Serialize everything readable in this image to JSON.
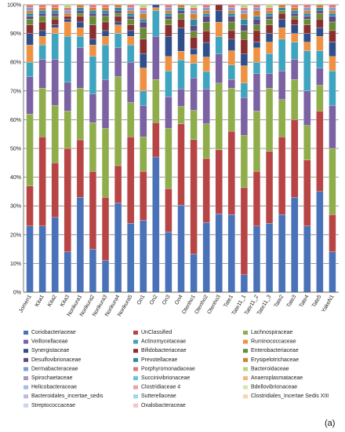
{
  "panel_label": "(a)",
  "chart_data": {
    "type": "bar",
    "stacked": true,
    "percent": true,
    "ylim": [
      0,
      100
    ],
    "yticks": [
      "0%",
      "10%",
      "20%",
      "30%",
      "40%",
      "50%",
      "60%",
      "70%",
      "80%",
      "90%",
      "100%"
    ],
    "grid": true,
    "legend_position": "bottom",
    "categories": [
      "Jomen1",
      "Kita1",
      "Kita2",
      "Kita3",
      "Norikura1",
      "Norikura2",
      "Norikura3",
      "Norikura4",
      "Norikura5",
      "On1",
      "On2",
      "On3",
      "On4",
      "Otenho1",
      "Otenho2",
      "Otenho3",
      "Tate1",
      "Tate11_1",
      "Tate11_2",
      "Tate11_3",
      "Tate2",
      "Tate3",
      "Tate4",
      "Tate5",
      "YakeN1"
    ],
    "series": [
      {
        "name": "Coriobacteriaceae",
        "color": "#4a72b8",
        "values": [
          23,
          23,
          26,
          14,
          33,
          15,
          11,
          31,
          24,
          25,
          47,
          21,
          30,
          13,
          24,
          27,
          27,
          6,
          23,
          24,
          27,
          33,
          23,
          35,
          14
        ]
      },
      {
        "name": "UnClassified",
        "color": "#b84545",
        "values": [
          14,
          31,
          19,
          36,
          20,
          27,
          22,
          13,
          30,
          17,
          12,
          15,
          28,
          39,
          22,
          22,
          29,
          30,
          19,
          25,
          27,
          27,
          23,
          28,
          13
        ]
      },
      {
        "name": "Lachnospiraceae",
        "color": "#8fad4a",
        "values": [
          25,
          17,
          20,
          13,
          18,
          17,
          24,
          31,
          12,
          12,
          15,
          21,
          6,
          10,
          12,
          23,
          15,
          18,
          21,
          22,
          13,
          14,
          12,
          9,
          23
        ]
      },
      {
        "name": "Veillonellaceae",
        "color": "#7b62a3",
        "values": [
          13,
          10,
          16,
          10,
          14,
          10,
          17,
          10,
          14,
          11,
          15,
          11,
          6,
          11,
          12,
          10,
          3,
          13,
          13,
          5,
          10,
          7,
          12,
          6,
          15
        ]
      },
      {
        "name": "Actinomycetaceae",
        "color": "#3fa4bf",
        "values": [
          5,
          5,
          9,
          16,
          4,
          13,
          12,
          5,
          6,
          5,
          9,
          9,
          10,
          5,
          6,
          6,
          5,
          5,
          4,
          7,
          11,
          6,
          14,
          6,
          12
        ]
      },
      {
        "name": "Ruminococcaceae",
        "color": "#ef9143",
        "values": [
          6,
          3,
          2,
          5,
          3,
          4,
          3,
          3,
          3,
          8,
          1,
          5,
          3,
          3,
          5,
          5,
          5,
          6,
          5,
          4,
          4,
          3,
          3,
          5,
          5
        ]
      },
      {
        "name": "Synergistaceae",
        "color": "#2f4e8a",
        "values": [
          4,
          2,
          1,
          1,
          2,
          2,
          2,
          1,
          2,
          5,
          1,
          7,
          8,
          2,
          5,
          4,
          4,
          4,
          2,
          3,
          3,
          3,
          3,
          3,
          5
        ]
      },
      {
        "name": "Bifidobacteriaceae",
        "color": "#8a2f2f",
        "values": [
          3,
          3,
          2,
          1,
          2,
          5,
          3,
          2,
          2,
          5,
          0,
          4,
          3,
          4,
          4,
          2,
          3,
          5,
          4,
          3,
          2,
          2,
          3,
          3,
          4
        ]
      },
      {
        "name": "Enterobacteriaceae",
        "color": "#6a8a35",
        "values": [
          2,
          2,
          1,
          0,
          1,
          3,
          2,
          1,
          2,
          4,
          0,
          2,
          2,
          2,
          3,
          0,
          3,
          3,
          2,
          2,
          1,
          1,
          2,
          2,
          3
        ]
      },
      {
        "name": "Desulfovibrionaceae",
        "color": "#5e4a82",
        "values": [
          1,
          1,
          1,
          0,
          1,
          1,
          1,
          1,
          1,
          2,
          0,
          1,
          1,
          2,
          2,
          0,
          2,
          2,
          2,
          1,
          0,
          1,
          1,
          1,
          2
        ]
      },
      {
        "name": "Prevotellaceae",
        "color": "#2e8aa4",
        "values": [
          1,
          1,
          1,
          0,
          1,
          1,
          1,
          1,
          1,
          1,
          0,
          1,
          1,
          2,
          1,
          0,
          1,
          2,
          1,
          1,
          1,
          1,
          1,
          1,
          1
        ]
      },
      {
        "name": "Erysipelotrichaceae",
        "color": "#d47e34",
        "values": [
          1,
          1,
          1,
          1,
          1,
          1,
          1,
          1,
          1,
          2,
          0,
          1,
          1,
          2,
          1,
          0,
          1,
          2,
          2,
          1,
          1,
          1,
          1,
          1,
          1
        ]
      },
      {
        "name": "Dermabacteraceae",
        "color": "#7f9fd8",
        "values": [
          1,
          0,
          0,
          1,
          0,
          0,
          0,
          0,
          1,
          1,
          0,
          1,
          0,
          1,
          1,
          0,
          1,
          1,
          1,
          0,
          0,
          0,
          1,
          0,
          1
        ]
      },
      {
        "name": "Porphyromonadaceae",
        "color": "#de7a7a",
        "values": [
          1,
          1,
          1,
          1,
          0,
          1,
          1,
          0,
          1,
          1,
          0,
          1,
          0,
          1,
          1,
          0,
          1,
          1,
          1,
          1,
          0,
          1,
          1,
          0,
          1
        ]
      },
      {
        "name": "Bacteroidaceae",
        "color": "#bcd47e",
        "values": [
          0,
          0,
          0,
          1,
          0,
          0,
          0,
          0,
          0,
          1,
          0,
          0,
          0,
          1,
          0,
          0,
          0,
          1,
          0,
          1,
          0,
          0,
          0,
          0,
          0
        ]
      }
    ],
    "legend_entries": [
      {
        "name": "Coriobacteriaceae",
        "color": "#4a72b8"
      },
      {
        "name": "UnClassified",
        "color": "#b84545"
      },
      {
        "name": "Lachnospiraceae",
        "color": "#8fad4a"
      },
      {
        "name": "Veillonellaceae",
        "color": "#7b62a3"
      },
      {
        "name": "Actinomycetaceae",
        "color": "#3fa4bf"
      },
      {
        "name": "Ruminococcaceae",
        "color": "#ef9143"
      },
      {
        "name": "Synergistaceae",
        "color": "#2f4e8a"
      },
      {
        "name": "Bifidobacteriaceae",
        "color": "#8a2f2f"
      },
      {
        "name": "Enterobacteriaceae",
        "color": "#6a8a35"
      },
      {
        "name": "Desulfovibrionaceae",
        "color": "#5e4a82"
      },
      {
        "name": "Prevotellaceae",
        "color": "#2e8aa4"
      },
      {
        "name": "Erysipelotrichaceae",
        "color": "#d47e34"
      },
      {
        "name": "Dermabacteraceae",
        "color": "#7f9fd8"
      },
      {
        "name": "Porphyromonadaceae",
        "color": "#de7a7a"
      },
      {
        "name": "Bacteroidaceae",
        "color": "#bcd47e"
      },
      {
        "name": "Spirochaetaceae",
        "color": "#a796c6"
      },
      {
        "name": "Succinivibrionaceae",
        "color": "#67c4de"
      },
      {
        "name": "Anaeroplasmataceae",
        "color": "#f6b47e"
      },
      {
        "name": "Helicobacteraceae",
        "color": "#a6bce6"
      },
      {
        "name": "Clostridiaceae 4",
        "color": "#e8a4a4"
      },
      {
        "name": "Bdellovibrionaceae",
        "color": "#d6e6aa"
      },
      {
        "name": "Bacteroidales_incertae_sedis",
        "color": "#c4b8dc"
      },
      {
        "name": "Sutterellaceae",
        "color": "#9ad8ea"
      },
      {
        "name": "Clostridiales_Incertae Sedis XIII",
        "color": "#fad2ae"
      },
      {
        "name": "Streptococcaceae",
        "color": "#c6d6f2"
      },
      {
        "name": "Oxalobacteraceae",
        "color": "#f2c6c6"
      }
    ]
  }
}
